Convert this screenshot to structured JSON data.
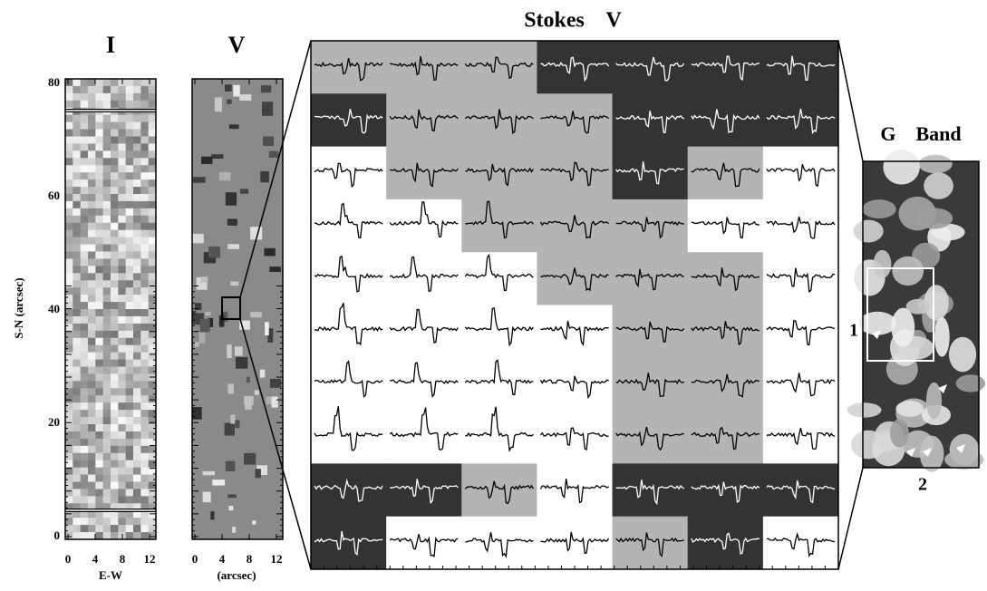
{
  "panels": {
    "intensity": {
      "title": "I",
      "x_label": "E-W",
      "y_label": "S-N (arcsec)",
      "x_ticks": [
        0,
        4,
        8,
        12
      ],
      "y_ticks": [
        0,
        20,
        40,
        60,
        80
      ]
    },
    "stokes_v_map": {
      "title": "V",
      "x_label": "(arcsec)",
      "x_ticks": [
        0,
        4,
        8,
        12
      ]
    },
    "profiles": {
      "title": "Stokes    V"
    },
    "g_band": {
      "title": "G    Band",
      "markers": [
        "1",
        "2"
      ]
    }
  }
}
